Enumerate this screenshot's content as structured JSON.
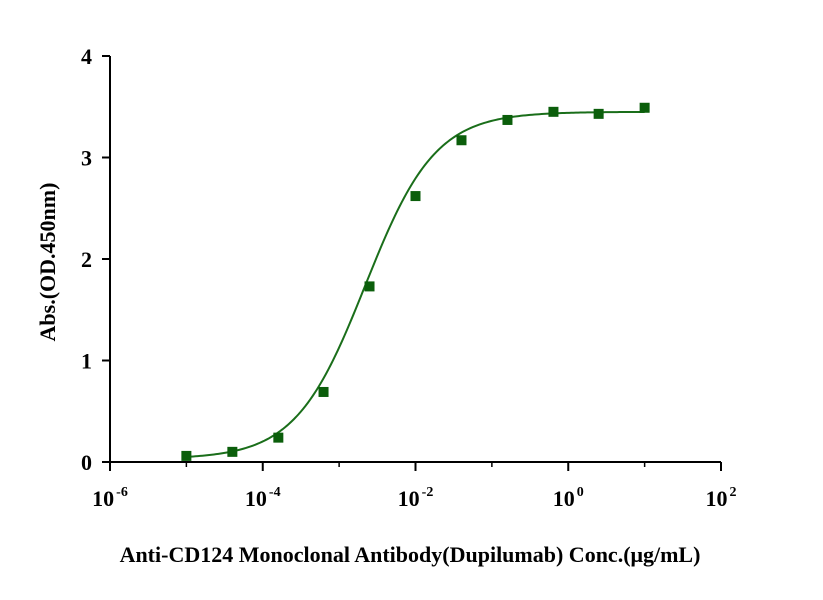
{
  "chart_data": {
    "type": "scatter",
    "title": "",
    "xlabel": "Anti-CD124 Monoclonal Antibody(Dupilumab) Conc.(μg/mL)",
    "ylabel": "Abs.(OD.450nm)",
    "xscale": "log",
    "xlim": [
      1e-06,
      100
    ],
    "ylim": [
      0,
      4
    ],
    "xticks": [
      {
        "base": "10",
        "exp": "-6",
        "value": 1e-06
      },
      {
        "base": "10",
        "exp": "-4",
        "value": 0.0001
      },
      {
        "base": "10",
        "exp": "-2",
        "value": 0.01
      },
      {
        "base": "10",
        "exp": "0",
        "value": 1
      },
      {
        "base": "10",
        "exp": "2",
        "value": 100
      }
    ],
    "yticks": [
      "0",
      "1",
      "2",
      "3",
      "4"
    ],
    "grid": false,
    "marker_color": "#0b5e0b",
    "curve_color": "#1a6e1a",
    "series": [
      {
        "x": [
          1e-05,
          4e-05,
          0.00016,
          0.000625,
          0.0025,
          0.01,
          0.04,
          0.16,
          0.64,
          2.5,
          10
        ],
        "y": [
          0.06,
          0.1,
          0.24,
          0.69,
          1.73,
          2.62,
          3.17,
          3.37,
          3.45,
          3.43,
          3.49
        ]
      }
    ],
    "fit": {
      "type": "4PL",
      "bottom": 0.03,
      "top": 3.45,
      "ec50": 0.0022,
      "hill": 0.95
    }
  }
}
